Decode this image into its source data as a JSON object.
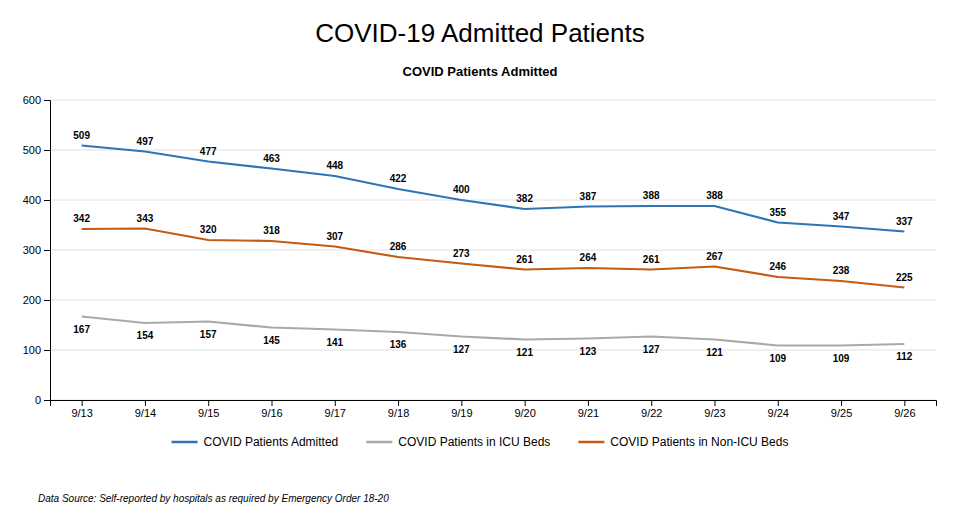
{
  "chart_data": {
    "type": "line",
    "title": "COVID-19 Admitted Patients",
    "subtitle": "COVID Patients Admitted",
    "footnote": "Data Source: Self-reported by hospitals as required by Emergency Order 18-20",
    "categories": [
      "9/13",
      "9/14",
      "9/15",
      "9/16",
      "9/17",
      "9/18",
      "9/19",
      "9/20",
      "9/21",
      "9/22",
      "9/23",
      "9/24",
      "9/25",
      "9/26"
    ],
    "series": [
      {
        "name": "COVID Patients Admitted",
        "color": "#2E75B6",
        "values": [
          509,
          497,
          477,
          463,
          448,
          422,
          400,
          382,
          387,
          388,
          388,
          355,
          347,
          337
        ]
      },
      {
        "name": "COVID Patients in ICU Beds",
        "color": "#A9A9A9",
        "values": [
          167,
          154,
          157,
          145,
          141,
          136,
          127,
          121,
          123,
          127,
          121,
          109,
          109,
          112
        ]
      },
      {
        "name": "COVID Patients in Non-ICU Beds",
        "color": "#C55A11",
        "values": [
          342,
          343,
          320,
          318,
          307,
          286,
          273,
          261,
          264,
          261,
          267,
          246,
          238,
          225
        ]
      }
    ],
    "ylim": [
      0,
      600
    ],
    "yticks": [
      0,
      100,
      200,
      300,
      400,
      500,
      600
    ],
    "grid": true,
    "legend": "bottom",
    "data_labels": true
  }
}
